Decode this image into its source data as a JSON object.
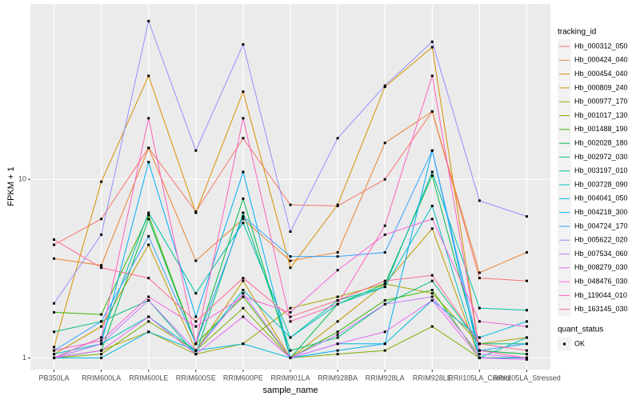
{
  "chart_data": {
    "type": "line",
    "x_label": "sample_name",
    "y_label": "FPKM + 1",
    "legend_title": "tracking_id",
    "log_scale": true,
    "grid": true,
    "legend_position": "right",
    "point_color": "#000000",
    "shape_legend": {
      "title": "quant_status",
      "labels": [
        "OK"
      ]
    },
    "categories": [
      "PB350LA",
      "RRIM600LA",
      "RRIM600LE",
      "RRIM600SE",
      "RRIM600PE",
      "RRIM901LA",
      "RRIM928BA",
      "RRIM928LA",
      "RRIM928LE",
      "RRII105LA_Control",
      "RRII105LA_Stressed"
    ],
    "ylim": [
      0.86,
      96
    ],
    "yticks": [
      1,
      10
    ],
    "series": [
      {
        "name": "Hb_000312_050",
        "color": "#F8766D",
        "values": [
          4.3,
          6.0,
          15,
          6.6,
          17,
          7.2,
          7.1,
          10,
          24,
          2.8,
          2.7
        ]
      },
      {
        "name": "Hb_000424_040",
        "color": "#EA8331",
        "values": [
          3.6,
          3.3,
          15,
          3.5,
          6.0,
          3.5,
          3.9,
          16,
          24,
          3.0,
          3.9
        ]
      },
      {
        "name": "Hb_000454_040",
        "color": "#D89000",
        "values": [
          1.15,
          9.7,
          38,
          6.5,
          31,
          3.2,
          7.2,
          33,
          55,
          1.1,
          1.05
        ]
      },
      {
        "name": "Hb_000809_240",
        "color": "#C09B00",
        "values": [
          1.05,
          1.5,
          4.3,
          1.1,
          2.7,
          1.0,
          1.6,
          2.6,
          5.3,
          1.0,
          1.0
        ]
      },
      {
        "name": "Hb_000977_170",
        "color": "#A3A500",
        "values": [
          1.0,
          1.1,
          1.4,
          1.05,
          1.2,
          1.9,
          2.2,
          2.6,
          2.3,
          1.2,
          1.3
        ]
      },
      {
        "name": "Hb_001017_130",
        "color": "#7CAE00",
        "values": [
          1.0,
          1.05,
          1.6,
          1.1,
          1.9,
          1.0,
          1.05,
          1.1,
          1.5,
          1.0,
          1.0
        ]
      },
      {
        "name": "Hb_001488_190",
        "color": "#39B600",
        "values": [
          1.8,
          1.75,
          6.3,
          1.2,
          2.2,
          1.0,
          1.4,
          2.1,
          2.4,
          1.0,
          1.0
        ]
      },
      {
        "name": "Hb_002028_180",
        "color": "#00BB4E",
        "values": [
          1.0,
          1.1,
          6.0,
          1.2,
          7.8,
          1.0,
          2.0,
          2.6,
          10.5,
          1.1,
          1.05
        ]
      },
      {
        "name": "Hb_002972_030",
        "color": "#00BF7D",
        "values": [
          1.4,
          1.6,
          2.1,
          1.05,
          6.5,
          1.1,
          1.3,
          2.0,
          2.7,
          1.2,
          1.2
        ]
      },
      {
        "name": "Hb_003197_010",
        "color": "#00C1A3",
        "values": [
          1.0,
          1.3,
          6.5,
          2.3,
          5.7,
          1.3,
          2.1,
          2.5,
          11,
          1.9,
          1.85
        ]
      },
      {
        "name": "Hb_003728_090",
        "color": "#00BFC4",
        "values": [
          1.05,
          1.2,
          1.7,
          1.1,
          2.4,
          1.3,
          2.0,
          2.5,
          7.1,
          1.0,
          1.3
        ]
      },
      {
        "name": "Hb_004041_050",
        "color": "#00BAE0",
        "values": [
          1.0,
          1.0,
          1.4,
          1.1,
          1.2,
          1.0,
          1.2,
          1.2,
          2.1,
          1.3,
          1.6
        ]
      },
      {
        "name": "Hb_004218_300",
        "color": "#00B0F6",
        "values": [
          1.0,
          1.2,
          12.5,
          1.7,
          11,
          1.0,
          1.1,
          1.2,
          14.5,
          1.0,
          1.0
        ]
      },
      {
        "name": "Hb_004724_170",
        "color": "#35A2FF",
        "values": [
          1.1,
          1.6,
          4.8,
          1.2,
          6.2,
          3.7,
          3.7,
          3.9,
          14.5,
          1.1,
          1.2
        ]
      },
      {
        "name": "Hb_005622_020",
        "color": "#9590FF",
        "values": [
          2.02,
          4.9,
          77,
          14.5,
          57,
          5.1,
          17,
          33.5,
          59,
          7.6,
          6.2
        ]
      },
      {
        "name": "Hb_007534_060",
        "color": "#C77CFF",
        "values": [
          1.0,
          1.2,
          2.1,
          1.1,
          2.3,
          1.0,
          1.35,
          2.0,
          2.2,
          1.05,
          1.0
        ]
      },
      {
        "name": "Hb_008279_030",
        "color": "#E76BF3",
        "values": [
          1.0,
          1.1,
          1.7,
          1.05,
          1.7,
          1.0,
          1.2,
          1.4,
          2.1,
          1.0,
          0.98
        ]
      },
      {
        "name": "Hb_048476_030",
        "color": "#FA62DB",
        "values": [
          1.1,
          1.25,
          2.2,
          1.5,
          2.2,
          1.8,
          3.1,
          4.9,
          6.0,
          1.6,
          1.5
        ]
      },
      {
        "name": "Hb_119044_010",
        "color": "#FF62BC",
        "values": [
          1.0,
          1.3,
          22,
          1.2,
          22,
          1.6,
          2.0,
          5.5,
          38,
          1.1,
          1.0
        ]
      },
      {
        "name": "Hb_163145_030",
        "color": "#FF6C91",
        "values": [
          4.6,
          3.2,
          2.8,
          1.6,
          2.8,
          1.7,
          2.1,
          2.7,
          2.9,
          1.2,
          1.1
        ]
      }
    ]
  }
}
